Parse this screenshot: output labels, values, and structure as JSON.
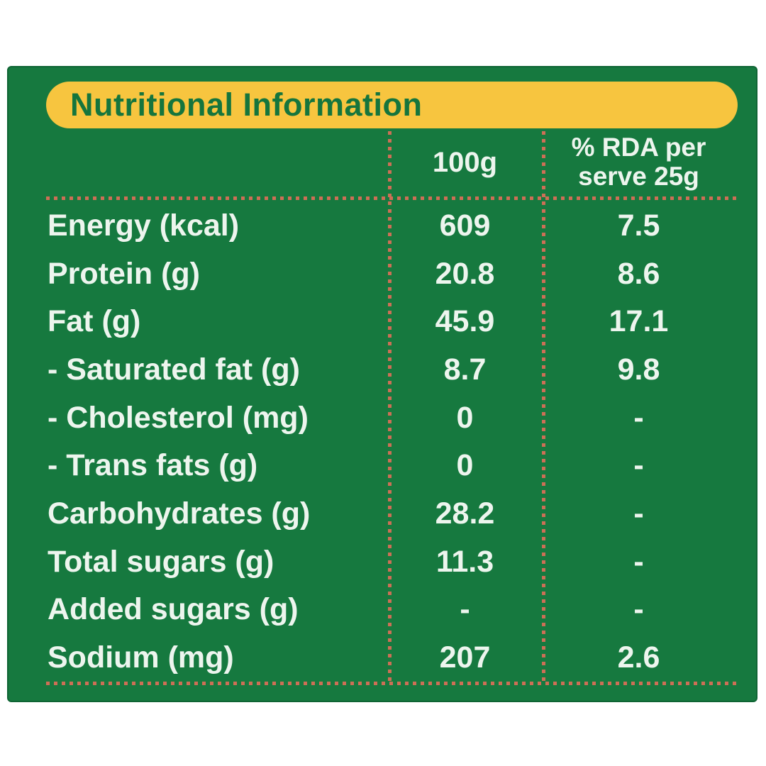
{
  "colors": {
    "panel_green": "#16793f",
    "banner_yellow": "#f7c53f",
    "title_green": "#15753d",
    "dotted_line_salmon": "#cd6f56",
    "text_white": "#edf5ee"
  },
  "header": {
    "title": "Nutritional Information"
  },
  "table": {
    "col_100g": "100g",
    "col_rda": "% RDA per serve 25g",
    "rows": [
      {
        "label": "Energy (kcal)",
        "per_100g": "609",
        "rda_per_serve": "7.5"
      },
      {
        "label": "Protein (g)",
        "per_100g": "20.8",
        "rda_per_serve": "8.6"
      },
      {
        "label": "Fat (g)",
        "per_100g": "45.9",
        "rda_per_serve": "17.1"
      },
      {
        "label": "- Saturated fat (g)",
        "per_100g": "8.7",
        "rda_per_serve": "9.8"
      },
      {
        "label": "- Cholesterol (mg)",
        "per_100g": "0",
        "rda_per_serve": "-"
      },
      {
        "label": "- Trans fats (g)",
        "per_100g": "0",
        "rda_per_serve": "-"
      },
      {
        "label": "Carbohydrates (g)",
        "per_100g": "28.2",
        "rda_per_serve": "-"
      },
      {
        "label": "Total sugars (g)",
        "per_100g": "11.3",
        "rda_per_serve": "-"
      },
      {
        "label": "Added sugars (g)",
        "per_100g": "-",
        "rda_per_serve": "-"
      },
      {
        "label": "Sodium (mg)",
        "per_100g": "207",
        "rda_per_serve": "2.6"
      }
    ]
  }
}
